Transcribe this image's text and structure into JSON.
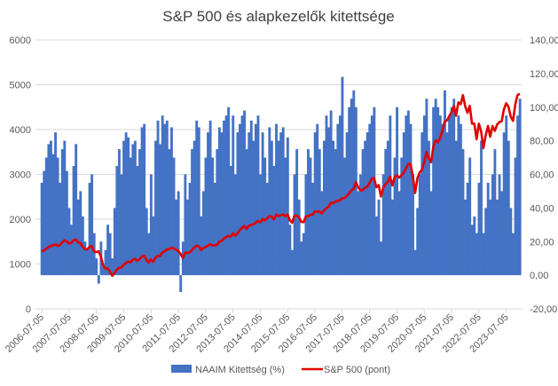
{
  "chart_data": {
    "type": "bar+line",
    "title": "S&P 500 és alapkezelők kitettsége",
    "x_start": "2006-07",
    "x_step": "month",
    "x_tick_labels": [
      "2006-07-05",
      "2007-07-05",
      "2008-07-05",
      "2009-07-05",
      "2010-07-05",
      "2011-07-05",
      "2012-07-05",
      "2013-07-05",
      "2014-07-05",
      "2015-07-05",
      "2016-07-05",
      "2017-07-05",
      "2018-07-05",
      "2019-07-05",
      "2020-07-05",
      "2021-07-05",
      "2022-07-05",
      "2023-07-05"
    ],
    "left_axis": {
      "min": 0,
      "max": 6000,
      "step": 1000,
      "tick_labels": [
        "0",
        "1000",
        "2000",
        "3000",
        "4000",
        "5000",
        "6000"
      ]
    },
    "right_axis": {
      "min": -20,
      "max": 140,
      "step": 20,
      "tick_labels": [
        "-20,00",
        "0,00",
        "20,00",
        "40,00",
        "60,00",
        "80,00",
        "100,00",
        "120,00",
        "140,00"
      ]
    },
    "grid": "horizontal",
    "legend_position": "bottom",
    "series": [
      {
        "name": "NAAIM Kitettség (%)",
        "type": "bar",
        "axis": "right",
        "color": "#4472C4",
        "values": [
          55,
          62,
          70,
          78,
          80,
          72,
          85,
          70,
          55,
          75,
          80,
          62,
          40,
          30,
          65,
          78,
          45,
          50,
          35,
          20,
          15,
          55,
          60,
          25,
          10,
          -5,
          20,
          5,
          15,
          30,
          25,
          10,
          40,
          65,
          75,
          60,
          80,
          85,
          82,
          70,
          78,
          80,
          65,
          75,
          88,
          90,
          40,
          25,
          60,
          35,
          80,
          92,
          78,
          95,
          90,
          92,
          75,
          88,
          70,
          45,
          50,
          -10,
          20,
          60,
          45,
          55,
          75,
          80,
          92,
          88,
          35,
          50,
          70,
          85,
          92,
          70,
          55,
          75,
          88,
          85,
          92,
          95,
          100,
          65,
          95,
          60,
          85,
          90,
          95,
          98,
          75,
          85,
          92,
          80,
          90,
          95,
          60,
          85,
          70,
          55,
          88,
          80,
          65,
          90,
          80,
          85,
          88,
          70,
          82,
          30,
          15,
          60,
          75,
          45,
          20,
          25,
          60,
          75,
          70,
          55,
          85,
          90,
          75,
          50,
          80,
          95,
          88,
          98,
          80,
          75,
          90,
          95,
          118,
          70,
          85,
          100,
          105,
          110,
          100,
          50,
          60,
          75,
          80,
          85,
          90,
          95,
          100,
          35,
          45,
          20,
          60,
          75,
          80,
          95,
          45,
          70,
          100,
          50,
          70,
          85,
          95,
          98,
          90,
          60,
          15,
          40,
          60,
          85,
          95,
          105,
          80,
          50,
          100,
          105,
          100,
          95,
          90,
          110,
          85,
          95,
          100,
          105,
          80,
          95,
          90,
          75,
          45,
          55,
          70,
          30,
          35,
          25,
          55,
          80,
          25,
          40,
          55,
          45,
          60,
          75,
          45,
          60,
          50,
          85,
          95,
          80,
          40,
          25,
          70,
          95,
          105
        ]
      },
      {
        "name": "S&P 500 (pont)",
        "type": "line",
        "axis": "left",
        "color": "#E00000",
        "values": [
          1277,
          1304,
          1336,
          1378,
          1401,
          1418,
          1438,
          1406,
          1421,
          1482,
          1531,
          1503,
          1455,
          1474,
          1527,
          1549,
          1481,
          1468,
          1379,
          1331,
          1323,
          1386,
          1400,
          1280,
          1267,
          1283,
          1166,
          969,
          896,
          903,
          826,
          735,
          798,
          873,
          919,
          919,
          987,
          1021,
          1057,
          1036,
          1096,
          1115,
          1074,
          1104,
          1169,
          1187,
          1089,
          1031,
          1102,
          1049,
          1141,
          1183,
          1181,
          1258,
          1286,
          1327,
          1326,
          1364,
          1345,
          1321,
          1292,
          1219,
          1131,
          1253,
          1247,
          1258,
          1312,
          1366,
          1408,
          1398,
          1310,
          1362,
          1379,
          1407,
          1441,
          1412,
          1416,
          1426,
          1498,
          1515,
          1569,
          1598,
          1631,
          1606,
          1686,
          1633,
          1682,
          1757,
          1806,
          1848,
          1783,
          1859,
          1872,
          1884,
          1924,
          1960,
          1931,
          2003,
          1972,
          2018,
          2068,
          2059,
          1995,
          2105,
          2068,
          2086,
          2107,
          2063,
          2104,
          1972,
          1920,
          2079,
          2080,
          2044,
          1940,
          1932,
          2060,
          2065,
          2097,
          2099,
          2174,
          2171,
          2168,
          2126,
          2199,
          2239,
          2279,
          2364,
          2363,
          2384,
          2412,
          2423,
          2470,
          2472,
          2519,
          2575,
          2648,
          2674,
          2824,
          2714,
          2641,
          2648,
          2705,
          2718,
          2816,
          2902,
          2914,
          2712,
          2760,
          2507,
          2704,
          2784,
          2834,
          2946,
          2752,
          2942,
          2980,
          2926,
          2977,
          3038,
          3141,
          3231,
          3226,
          2954,
          2585,
          2912,
          3044,
          3100,
          3271,
          3500,
          3363,
          3270,
          3622,
          3756,
          3714,
          3811,
          3973,
          4181,
          4204,
          4298,
          4395,
          4523,
          4308,
          4605,
          4567,
          4766,
          4516,
          4374,
          4530,
          4132,
          4132,
          3785,
          4130,
          3955,
          3586,
          3872,
          4080,
          3840,
          4077,
          3970,
          4109,
          4169,
          4180,
          4450,
          4589,
          4508,
          4288,
          4194,
          4568,
          4770,
          4800
        ]
      }
    ]
  }
}
